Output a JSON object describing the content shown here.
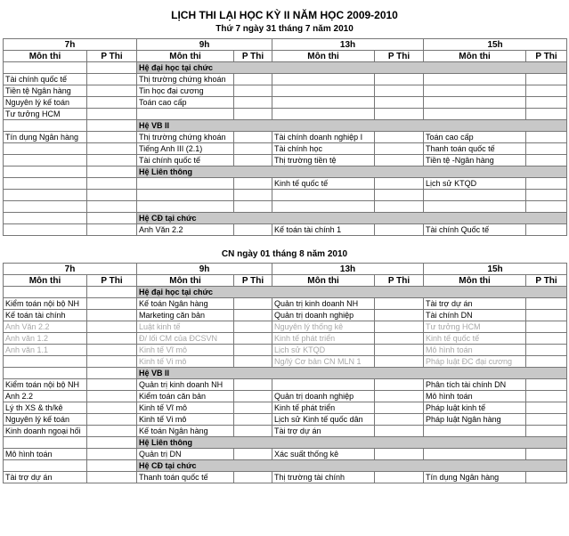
{
  "title": "LỊCH THI LẠI HỌC KỲ II NĂM HỌC 2009-2010",
  "tables": [
    {
      "subtitle": "Thứ 7 ngày 31 tháng 7 năm 2010",
      "times": [
        "7h",
        "9h",
        "13h",
        "15h"
      ],
      "columns": [
        "Môn thi",
        "P Thi"
      ],
      "rows": [
        {
          "section": "Hệ đại học tại chức"
        },
        [
          "Tài chính quốc tế",
          null,
          "Thị trường chứng khoán",
          null,
          null,
          null,
          null,
          null
        ],
        [
          "Tiền tệ Ngân hàng",
          null,
          "Tin học đại cương",
          null,
          null,
          null,
          null,
          null
        ],
        [
          "Nguyên lý kế toán",
          null,
          "Toán cao cấp",
          null,
          null,
          null,
          null,
          null
        ],
        [
          "Tư tưởng HCM",
          null,
          null,
          null,
          null,
          null,
          null,
          null
        ],
        {
          "section": "Hệ VB II"
        },
        [
          "Tín dụng Ngân hàng",
          null,
          "Thị trường chứng khoán",
          null,
          "Tài chính doanh nghiệp I",
          null,
          "Toán cao cấp",
          null
        ],
        [
          null,
          null,
          "Tiếng Anh III (2.1)",
          null,
          "Tài chính học",
          null,
          "Thanh toán quốc tế",
          null
        ],
        [
          null,
          null,
          "Tài chính quốc tế",
          null,
          "Thị trường tiền tệ",
          null,
          "Tiền tệ -Ngân hàng",
          null
        ],
        {
          "section": "Hệ Liên thông"
        },
        [
          null,
          null,
          null,
          null,
          "Kinh tế quốc tế",
          null,
          "Lịch sử KTQD",
          null
        ],
        [
          null,
          null,
          null,
          null,
          null,
          null,
          null,
          null
        ],
        [
          null,
          null,
          null,
          null,
          null,
          null,
          null,
          null
        ],
        {
          "section": "Hệ CĐ tại chức"
        },
        [
          null,
          null,
          "Anh Văn 2.2",
          null,
          "Kế toán tài chính 1",
          null,
          "Tài chính Quốc tế",
          null
        ]
      ]
    },
    {
      "subtitle": "CN ngày 01 tháng 8 năm 2010",
      "times": [
        "7h",
        "9h",
        "13h",
        "15h"
      ],
      "columns": [
        "Môn thi",
        "P Thi"
      ],
      "rows": [
        {
          "section": "Hệ đại học tại chức"
        },
        [
          "Kiểm toán nội bộ NH",
          null,
          "Kế toán Ngân hàng",
          null,
          "Quản trị kinh doanh NH",
          null,
          "Tài trợ dự án",
          null
        ],
        [
          "Kế toán tài chính",
          null,
          "Marketing căn bản",
          null,
          "Quản trị doanh nghiệp",
          null,
          "Tài chính DN",
          null
        ],
        {
          "color": "#a8a8a8",
          "cells": [
            "Anh Văn 2.2",
            null,
            "Luật kinh tế",
            null,
            "Nguyên lý thống kê",
            null,
            "Tư tưởng HCM",
            null
          ]
        },
        {
          "color": "#a8a8a8",
          "cells": [
            "Anh văn 1.2",
            null,
            "Đ/ lối CM của ĐCSVN",
            null,
            "Kinh tế phát triển",
            null,
            "Kinh tế quốc tế",
            null
          ]
        },
        {
          "color": "#a8a8a8",
          "cells": [
            "Anh văn 1.1",
            null,
            "Kinh tế Vĩ mô",
            null,
            "Lịch sử KTQD",
            null,
            "Mô hình toán",
            null
          ]
        },
        {
          "color": "#a8a8a8",
          "cells": [
            null,
            null,
            "Kinh tế Vi mô",
            null,
            "Ng/lý Cơ bản CN MLN 1",
            null,
            "Pháp luật ĐC đại cương",
            null
          ]
        },
        {
          "section": "Hệ VB II"
        },
        [
          "Kiểm toán nội bộ NH",
          null,
          "Quản trị kinh doanh NH",
          null,
          null,
          null,
          "Phân tích tài chính DN",
          null
        ],
        [
          "Anh 2.2",
          null,
          "Kiểm toán căn bản",
          null,
          "Quản trị doanh nghiệp",
          null,
          "Mô hình toán",
          null
        ],
        [
          "Lý th XS & th/kê",
          null,
          "Kinh tế Vĩ mô",
          null,
          "Kinh tế phát triển",
          null,
          "Pháp luật kinh tế",
          null
        ],
        [
          "Nguyên lý kế toán",
          null,
          "Kinh tế Vi mô",
          null,
          "Lịch sử Kinh tế quốc dân",
          null,
          "Pháp luật Ngân hàng",
          null
        ],
        [
          "Kinh doanh ngoại hối",
          null,
          "Kế toán Ngân hàng",
          null,
          "Tài trợ dự án",
          null,
          null,
          null
        ],
        {
          "section": "Hệ Liên thông"
        },
        [
          "Mô hình toán",
          null,
          "Quản trị DN",
          null,
          "Xác suất thống kê",
          null,
          null,
          null
        ],
        {
          "section": "Hệ CĐ tại chức"
        },
        [
          "Tài trợ dự án",
          null,
          "Thanh toán quốc tế",
          null,
          "Thị trường tài chính",
          null,
          "Tín dụng Ngân hàng",
          null
        ]
      ]
    }
  ]
}
